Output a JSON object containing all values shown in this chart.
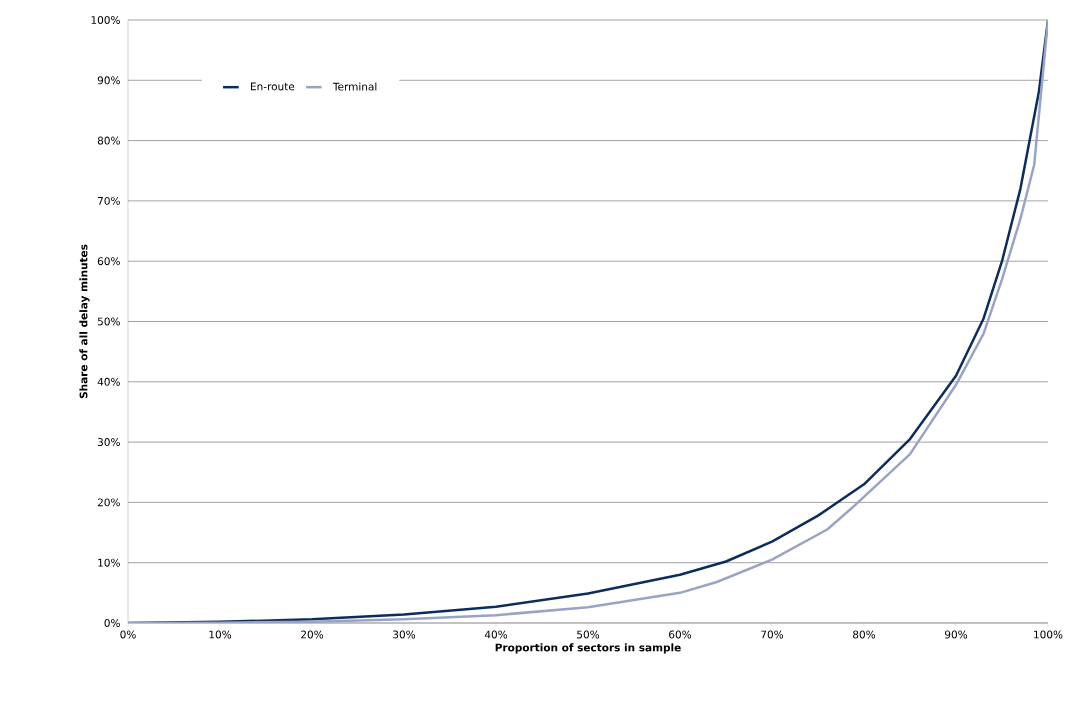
{
  "chart_data": {
    "type": "line",
    "xlabel": "Proportion of sectors in sample",
    "ylabel": "Share of all delay minutes",
    "xlim": [
      0,
      100
    ],
    "ylim": [
      0,
      100
    ],
    "xticks": [
      {
        "value": 0,
        "label": "0%"
      },
      {
        "value": 10,
        "label": "10%"
      },
      {
        "value": 20,
        "label": "20%"
      },
      {
        "value": 30,
        "label": "30%"
      },
      {
        "value": 40,
        "label": "40%"
      },
      {
        "value": 50,
        "label": "50%"
      },
      {
        "value": 60,
        "label": "60%"
      },
      {
        "value": 70,
        "label": "70%"
      },
      {
        "value": 80,
        "label": "80%"
      },
      {
        "value": 90,
        "label": "90%"
      },
      {
        "value": 100,
        "label": "100%"
      }
    ],
    "yticks": [
      {
        "value": 0,
        "label": "0%"
      },
      {
        "value": 10,
        "label": "10%"
      },
      {
        "value": 20,
        "label": "20%"
      },
      {
        "value": 30,
        "label": "30%"
      },
      {
        "value": 40,
        "label": "40%"
      },
      {
        "value": 50,
        "label": "50%"
      },
      {
        "value": 60,
        "label": "60%"
      },
      {
        "value": 70,
        "label": "70%"
      },
      {
        "value": 80,
        "label": "80%"
      },
      {
        "value": 90,
        "label": "90%"
      },
      {
        "value": 100,
        "label": "100%"
      }
    ],
    "grid": "y",
    "legend": "top left",
    "marker": "none",
    "line_style": "solid",
    "series": [
      {
        "name": "En-route",
        "color": "#0b2d5e",
        "x": [
          0,
          10,
          20,
          30,
          40,
          50,
          60,
          65,
          70,
          75,
          80,
          85,
          90,
          93,
          95,
          97,
          99,
          100
        ],
        "values": [
          0,
          0.2,
          0.6,
          1.4,
          2.7,
          4.9,
          8.0,
          10.2,
          13.5,
          17.8,
          23,
          30.5,
          41,
          50.5,
          60,
          72,
          88,
          100
        ]
      },
      {
        "name": "Terminal",
        "color": "#9aa3c3",
        "x": [
          0,
          10,
          20,
          30,
          40,
          50,
          60,
          64,
          70,
          76,
          79,
          85,
          90,
          93,
          95,
          97,
          98.5,
          100
        ],
        "values": [
          0,
          0.05,
          0.2,
          0.6,
          1.3,
          2.6,
          5.0,
          6.8,
          10.5,
          15.5,
          19.5,
          28,
          39.5,
          48,
          57,
          67,
          76,
          100
        ]
      }
    ]
  }
}
